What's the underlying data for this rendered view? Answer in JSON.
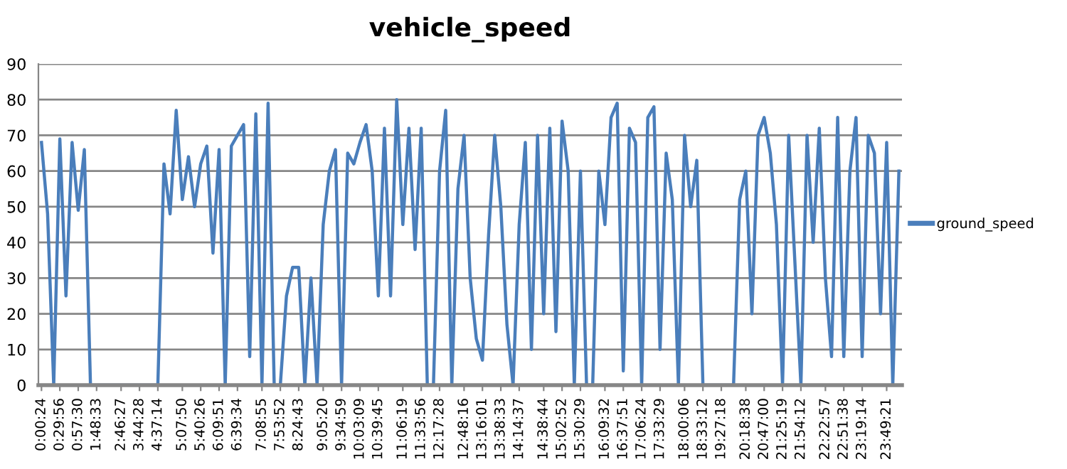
{
  "chart_data": {
    "type": "line",
    "title": "vehicle_speed",
    "categories": [
      "0:00:24",
      null,
      null,
      "0:29:56",
      null,
      null,
      "0:57:30",
      null,
      null,
      "1:48:33",
      null,
      null,
      null,
      "2:46:27",
      null,
      null,
      "3:44:28",
      null,
      null,
      "4:37:14",
      null,
      null,
      null,
      "5:07:50",
      null,
      null,
      "5:40:26",
      null,
      null,
      "6:09:51",
      null,
      null,
      "6:39:34",
      null,
      null,
      null,
      "7:08:55",
      null,
      null,
      "7:53:52",
      null,
      null,
      "8:24:43",
      null,
      null,
      null,
      "9:05:20",
      null,
      null,
      "9:34:59",
      null,
      null,
      "10:03:09",
      null,
      null,
      "10:39:45",
      null,
      null,
      null,
      "11:06:19",
      null,
      null,
      "11:33:56",
      null,
      null,
      "12:17:28",
      null,
      null,
      null,
      "12:48:16",
      null,
      null,
      "13:16:01",
      null,
      null,
      "13:38:33",
      null,
      null,
      "14:14:37",
      null,
      null,
      null,
      "14:38:44",
      null,
      null,
      "15:02:52",
      null,
      null,
      "15:30:29",
      null,
      null,
      null,
      "16:09:32",
      null,
      null,
      "16:37:51",
      null,
      null,
      "17:06:24",
      null,
      null,
      "17:33:29",
      null,
      null,
      null,
      "18:00:06",
      null,
      null,
      "18:33:12",
      null,
      null,
      "19:27:18",
      null,
      null,
      null,
      "20:18:38",
      null,
      null,
      "20:47:00",
      null,
      null,
      "21:25:19",
      null,
      null,
      "21:54:12",
      null,
      null,
      null,
      "22:22:57",
      null,
      null,
      "22:51:38",
      null,
      null,
      "23:19:14",
      null,
      null,
      null,
      "23:49:21",
      null,
      null
    ],
    "series": [
      {
        "name": "ground_speed",
        "color": "#4a7ebb",
        "values": [
          68,
          48,
          0,
          69,
          25,
          68,
          49,
          66,
          0,
          0,
          0,
          0,
          0,
          0,
          0,
          0,
          0,
          0,
          0,
          0,
          62,
          48,
          77,
          52,
          64,
          50,
          62,
          67,
          37,
          66,
          0,
          67,
          70,
          73,
          8,
          76,
          0,
          79,
          0,
          0,
          25,
          33,
          33,
          0,
          30,
          0,
          45,
          60,
          66,
          0,
          65,
          62,
          68,
          73,
          60,
          25,
          72,
          25,
          80,
          45,
          72,
          38,
          72,
          0,
          0,
          60,
          77,
          0,
          55,
          70,
          30,
          13,
          7,
          42,
          70,
          50,
          17,
          0,
          45,
          68,
          10,
          70,
          20,
          72,
          15,
          74,
          60,
          0,
          60,
          0,
          0,
          60,
          45,
          75,
          79,
          4,
          72,
          68,
          0,
          75,
          78,
          10,
          65,
          52,
          0,
          70,
          50,
          63,
          0,
          0,
          0,
          0,
          0,
          0,
          52,
          60,
          20,
          70,
          75,
          65,
          45,
          0,
          70,
          35,
          0,
          70,
          40,
          72,
          30,
          8,
          75,
          8,
          60,
          75,
          8,
          70,
          65,
          20,
          68,
          0,
          60
        ]
      }
    ],
    "ylim": [
      0,
      90
    ],
    "yticks": [
      0,
      10,
      20,
      30,
      40,
      50,
      60,
      70,
      80,
      90
    ],
    "grid": "y",
    "legend": "right",
    "marker": "none",
    "line_style": "solid"
  }
}
